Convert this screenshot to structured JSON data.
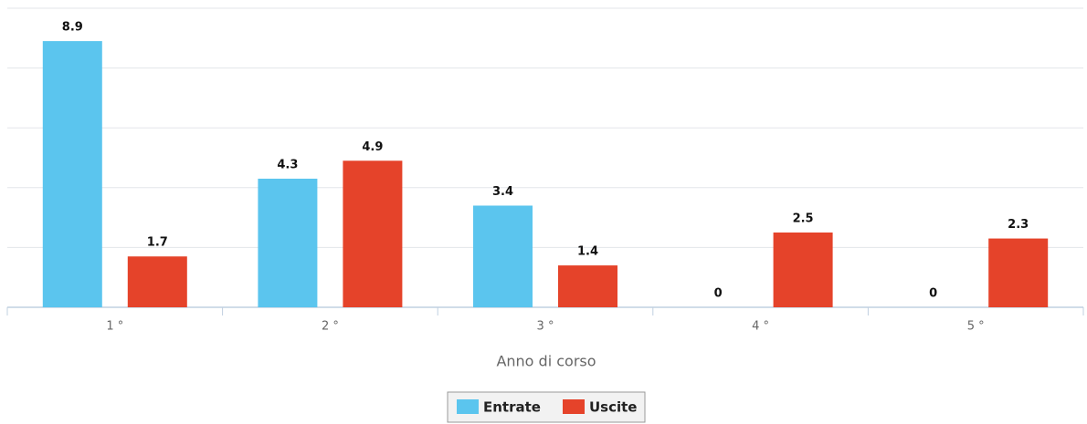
{
  "chart_data": {
    "type": "bar",
    "x_label": "Anno di corso",
    "categories": [
      "1 °",
      "2 °",
      "3 °",
      "4 °",
      "5 °"
    ],
    "series": [
      {
        "name": "Entrate",
        "color": "#5bc5ee",
        "values": [
          8.9,
          4.3,
          3.4,
          0,
          0
        ]
      },
      {
        "name": "Uscite",
        "color": "#e5432a",
        "values": [
          1.7,
          4.9,
          1.4,
          2.5,
          2.3
        ]
      }
    ],
    "ylim": [
      0,
      10
    ],
    "yticks": [
      0,
      2,
      4,
      6,
      8,
      10
    ],
    "grid": true,
    "legend": "bottom"
  }
}
